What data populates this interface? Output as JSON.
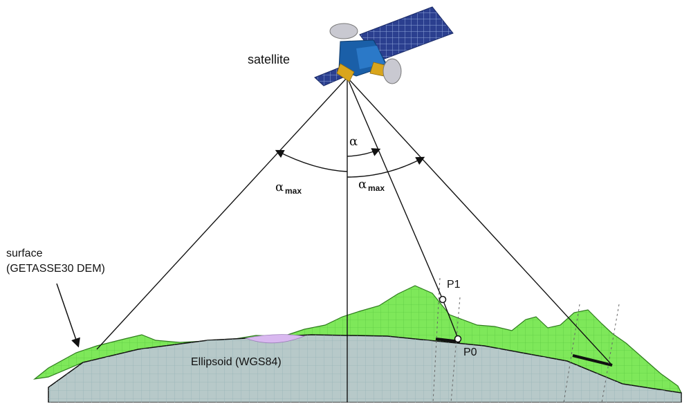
{
  "labels": {
    "satellite": "satellite",
    "surface_line1": "surface",
    "surface_line2": "(GETASSE30 DEM)",
    "ellipsoid": "Ellipsoid (WGS84)",
    "p1": "P1",
    "p0": "P0",
    "alpha": "α",
    "alpha_max_symbol": "α",
    "alpha_max_sub": "max"
  },
  "colors": {
    "terrain": "#7ee85a",
    "terrain_edge": "#2d7a1c",
    "ellipsoid": "#b7c9c9",
    "ellipsoid_grid": "#97b3b7",
    "terrain_grid": "#4fbf3a",
    "lake": "#d9b8f0",
    "panel": "#2b3f8f",
    "body": "#1a5fa8",
    "gold": "#d9a51c"
  },
  "icons": {
    "satellite": "satellite-icon",
    "point_marker": "point-marker-icon"
  }
}
